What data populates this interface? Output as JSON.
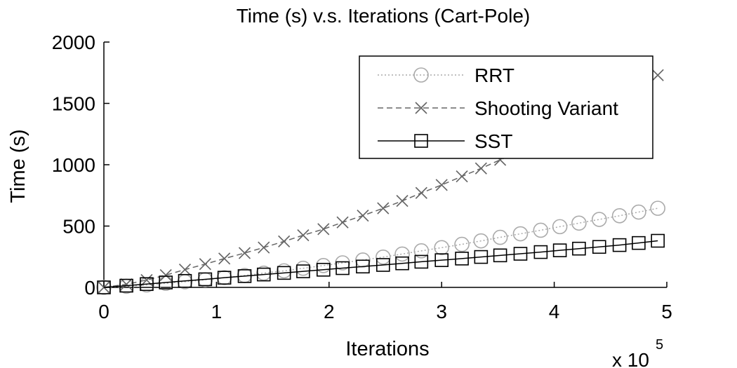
{
  "chart_data": {
    "type": "line",
    "title": "Time (s) v.s. Iterations (Cart-Pole)",
    "xlabel": "Iterations",
    "ylabel": "Time (s)",
    "x_multiplier_label": "x 10",
    "x_multiplier_exponent": "5",
    "xlim": [
      0,
      5
    ],
    "ylim": [
      0,
      2000
    ],
    "xticks": [
      "0",
      "1",
      "2",
      "3",
      "4",
      "5"
    ],
    "yticks": [
      "0",
      "500",
      "1000",
      "1500",
      "2000"
    ],
    "grid": false,
    "legend_position": "top-right",
    "x": [
      0,
      0.2,
      0.38,
      0.55,
      0.72,
      0.9,
      1.07,
      1.25,
      1.42,
      1.6,
      1.77,
      1.95,
      2.12,
      2.3,
      2.48,
      2.65,
      2.82,
      3.0,
      3.18,
      3.35,
      3.52,
      3.7,
      3.88,
      4.05,
      4.22,
      4.4,
      4.58,
      4.75,
      4.92
    ],
    "series": [
      {
        "name": "RRT",
        "color": "#aaaaaa",
        "marker": "circle",
        "line": "dotted",
        "values": [
          0,
          9,
          20,
          33,
          46,
          62,
          79,
          97,
          116,
          135,
          156,
          178,
          200,
          223,
          247,
          272,
          298,
          324,
          351,
          379,
          408,
          437,
          466,
          495,
          524,
          554,
          584,
          614,
          645
        ]
      },
      {
        "name": "Shooting Variant",
        "color": "#666666",
        "marker": "x",
        "line": "dashed",
        "values": [
          0,
          25,
          60,
          100,
          145,
          190,
          235,
          280,
          325,
          375,
          425,
          475,
          530,
          585,
          645,
          705,
          770,
          835,
          905,
          970,
          1040,
          1110,
          1185,
          1260,
          1340,
          1420,
          1500,
          1590,
          1730
        ]
      },
      {
        "name": "SST",
        "color": "#000000",
        "marker": "square",
        "line": "solid",
        "values": [
          0,
          14,
          27,
          40,
          53,
          66,
          79,
          92,
          105,
          118,
          131,
          144,
          157,
          170,
          183,
          196,
          209,
          222,
          235,
          248,
          261,
          274,
          288,
          302,
          316,
          330,
          345,
          362,
          380
        ]
      }
    ]
  }
}
